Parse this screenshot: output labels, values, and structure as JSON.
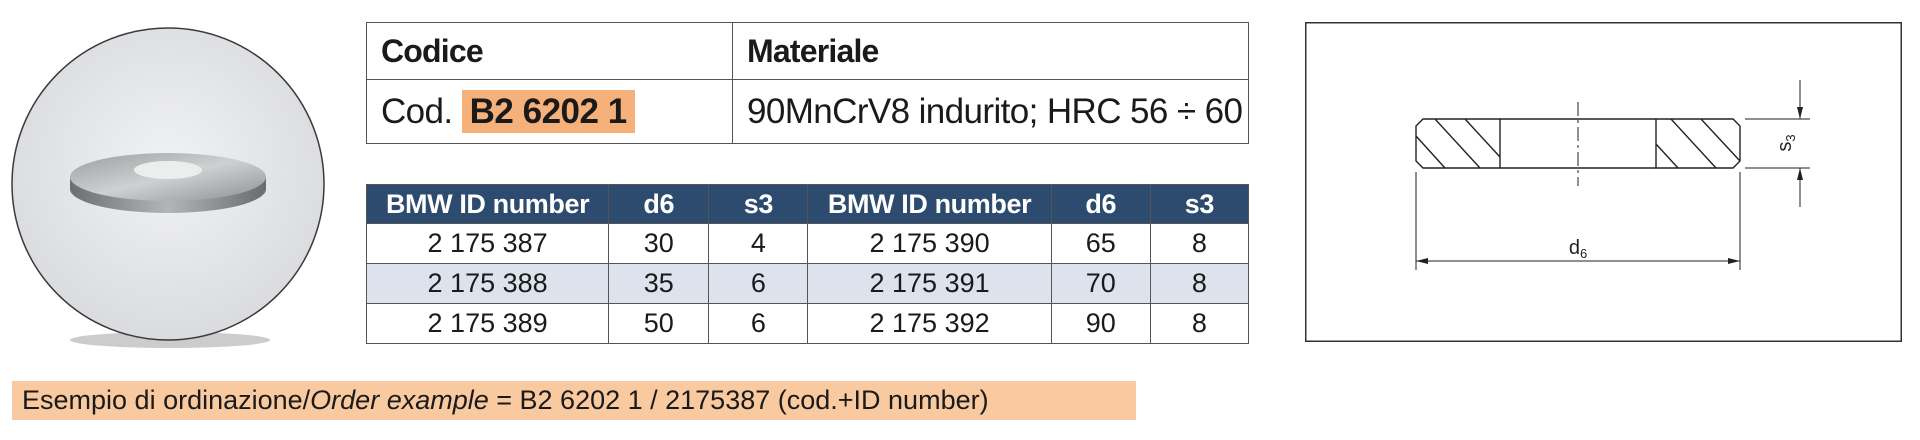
{
  "product": {
    "header": {
      "code_label": "Codice",
      "material_label": "Materiale"
    },
    "code_prefix": "Cod.",
    "code": "B2 6202 1",
    "material": "90MnCrV8 indurito; HRC 56 ÷ 60",
    "table": {
      "headers": [
        "BMW ID number",
        "d6",
        "s3",
        "BMW ID number",
        "d6",
        "s3"
      ],
      "rows": [
        [
          "2 175 387",
          30,
          4,
          "2 175 390",
          65,
          8
        ],
        [
          "2 175 388",
          35,
          6,
          "2 175 391",
          70,
          8
        ],
        [
          "2 175 389",
          50,
          6,
          "2 175 392",
          90,
          8
        ]
      ]
    },
    "drawing": {
      "diameter": {
        "base": "d",
        "sub": "6"
      },
      "thickness": {
        "base": "s",
        "sub": "3"
      }
    },
    "order_example": {
      "lead": "Esempio di ordinazione/",
      "italic": "Order example",
      "rest": " = B2 6202 1 / 2175387 (cod.+ID number)"
    }
  }
}
